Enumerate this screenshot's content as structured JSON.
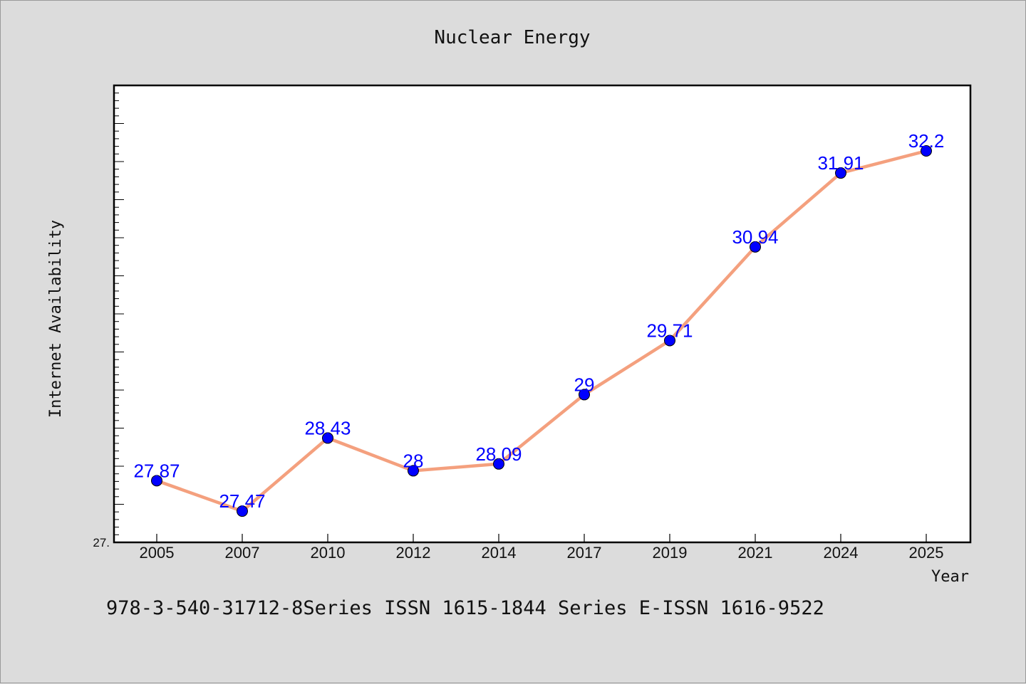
{
  "chart_data": {
    "type": "line",
    "title": "Nuclear Energy",
    "xlabel": "Year",
    "ylabel": "Internet Availability",
    "categories": [
      "2005",
      "2007",
      "2010",
      "2012",
      "2014",
      "2017",
      "2019",
      "2021",
      "2024",
      "2025"
    ],
    "values": [
      27.87,
      27.47,
      28.43,
      28,
      28.09,
      29,
      29.71,
      30.94,
      31.91,
      32.2
    ],
    "data_labels": [
      "27.87",
      "27.47",
      "28.43",
      "28",
      "28.09",
      "29",
      "29.71",
      "30.94",
      "31.91",
      "32.2"
    ],
    "ylim": [
      27.06,
      33.06
    ],
    "y_tick_label": "27.",
    "grid": false,
    "line_color": "#f4a07e",
    "marker_color": "#0000ff",
    "label_color": "#0000ff"
  },
  "footer_text": "978-3-540-31712-8Series ISSN 1615-1844 Series E-ISSN 1616-9522"
}
